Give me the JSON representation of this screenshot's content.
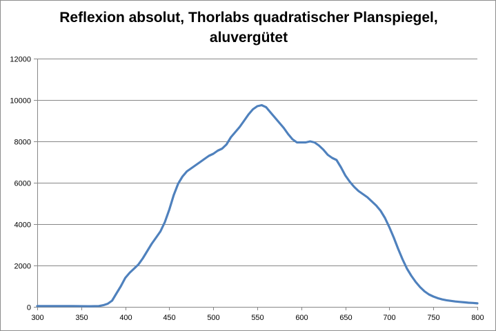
{
  "chart_data": {
    "type": "line",
    "title_lines": [
      "Reflexion absolut, Thorlabs quadratischer Planspiegel,",
      "aluvergütet"
    ],
    "xlabel": "",
    "ylabel": "",
    "xlim": [
      300,
      800
    ],
    "ylim": [
      0,
      12000
    ],
    "xticks": [
      300,
      350,
      400,
      450,
      500,
      550,
      600,
      650,
      700,
      750,
      800
    ],
    "yticks": [
      0,
      2000,
      4000,
      6000,
      8000,
      10000,
      12000
    ],
    "grid": {
      "horizontal": true,
      "vertical": false
    },
    "legend": "none",
    "series": [
      {
        "color": "#4f81bd",
        "points": [
          [
            300,
            40
          ],
          [
            320,
            40
          ],
          [
            340,
            40
          ],
          [
            360,
            30
          ],
          [
            370,
            40
          ],
          [
            375,
            80
          ],
          [
            380,
            150
          ],
          [
            385,
            300
          ],
          [
            390,
            650
          ],
          [
            395,
            1000
          ],
          [
            400,
            1400
          ],
          [
            405,
            1650
          ],
          [
            410,
            1850
          ],
          [
            415,
            2050
          ],
          [
            420,
            2350
          ],
          [
            425,
            2700
          ],
          [
            430,
            3050
          ],
          [
            435,
            3350
          ],
          [
            440,
            3650
          ],
          [
            445,
            4100
          ],
          [
            450,
            4700
          ],
          [
            455,
            5400
          ],
          [
            460,
            5950
          ],
          [
            465,
            6300
          ],
          [
            470,
            6550
          ],
          [
            475,
            6700
          ],
          [
            480,
            6850
          ],
          [
            485,
            7000
          ],
          [
            490,
            7150
          ],
          [
            495,
            7300
          ],
          [
            500,
            7400
          ],
          [
            505,
            7550
          ],
          [
            510,
            7650
          ],
          [
            515,
            7850
          ],
          [
            520,
            8200
          ],
          [
            525,
            8450
          ],
          [
            530,
            8700
          ],
          [
            535,
            9000
          ],
          [
            540,
            9300
          ],
          [
            545,
            9550
          ],
          [
            550,
            9700
          ],
          [
            555,
            9750
          ],
          [
            560,
            9650
          ],
          [
            565,
            9400
          ],
          [
            570,
            9150
          ],
          [
            575,
            8900
          ],
          [
            580,
            8650
          ],
          [
            585,
            8350
          ],
          [
            590,
            8100
          ],
          [
            595,
            7950
          ],
          [
            600,
            7950
          ],
          [
            605,
            7950
          ],
          [
            610,
            8000
          ],
          [
            615,
            7950
          ],
          [
            620,
            7800
          ],
          [
            625,
            7600
          ],
          [
            630,
            7350
          ],
          [
            635,
            7200
          ],
          [
            640,
            7100
          ],
          [
            645,
            6750
          ],
          [
            650,
            6350
          ],
          [
            655,
            6050
          ],
          [
            660,
            5800
          ],
          [
            665,
            5600
          ],
          [
            670,
            5450
          ],
          [
            675,
            5300
          ],
          [
            680,
            5100
          ],
          [
            685,
            4900
          ],
          [
            690,
            4650
          ],
          [
            695,
            4300
          ],
          [
            700,
            3850
          ],
          [
            705,
            3350
          ],
          [
            710,
            2800
          ],
          [
            715,
            2300
          ],
          [
            720,
            1850
          ],
          [
            725,
            1500
          ],
          [
            730,
            1200
          ],
          [
            735,
            950
          ],
          [
            740,
            750
          ],
          [
            745,
            600
          ],
          [
            750,
            500
          ],
          [
            755,
            420
          ],
          [
            760,
            360
          ],
          [
            765,
            320
          ],
          [
            770,
            290
          ],
          [
            775,
            260
          ],
          [
            780,
            240
          ],
          [
            785,
            220
          ],
          [
            790,
            200
          ],
          [
            795,
            190
          ],
          [
            800,
            170
          ]
        ]
      }
    ]
  }
}
